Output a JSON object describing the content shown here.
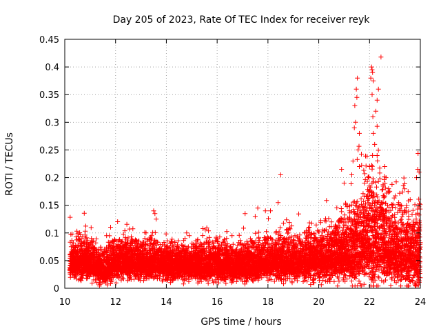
{
  "chart_data": {
    "type": "scatter",
    "title": "Day 205 of 2023, Rate Of TEC Index for receiver reyk",
    "xlabel": "GPS time / hours",
    "ylabel": "ROTI / TECUs",
    "xlim": [
      10,
      24
    ],
    "ylim": [
      0,
      0.45
    ],
    "x_ticks": [
      10,
      12,
      14,
      16,
      18,
      20,
      22,
      24
    ],
    "x_tick_labels": [
      "10",
      "12",
      "14",
      "16",
      "18",
      "20",
      "22",
      "24"
    ],
    "y_ticks": [
      0,
      0.05,
      0.1,
      0.15,
      0.2,
      0.25,
      0.3,
      0.35,
      0.4,
      0.45
    ],
    "y_tick_labels": [
      "0",
      "0.05",
      "0.1",
      "0.15",
      "0.2",
      "0.25",
      "0.3",
      "0.35",
      "0.4",
      "0.45"
    ],
    "grid": true,
    "marker": "+",
    "color": "#ff0000",
    "envelope_hours": [
      10.2,
      11.0,
      11.5,
      12.0,
      13.0,
      14.0,
      15.0,
      16.0,
      17.0,
      18.0,
      19.0,
      20.0,
      20.5,
      21.0,
      21.5,
      22.0,
      22.5,
      23.0,
      23.5,
      24.0
    ],
    "envelope_typical": [
      0.045,
      0.045,
      0.03,
      0.045,
      0.045,
      0.04,
      0.04,
      0.04,
      0.04,
      0.045,
      0.045,
      0.05,
      0.055,
      0.06,
      0.07,
      0.09,
      0.08,
      0.06,
      0.06,
      0.06
    ],
    "envelope_spread": [
      0.02,
      0.02,
      0.018,
      0.02,
      0.02,
      0.018,
      0.018,
      0.02,
      0.02,
      0.022,
      0.024,
      0.025,
      0.03,
      0.035,
      0.045,
      0.06,
      0.055,
      0.04,
      0.04,
      0.045
    ],
    "points": [
      [
        10.9,
        0.08
      ],
      [
        11.05,
        0.09
      ],
      [
        12.1,
        0.085
      ],
      [
        13.5,
        0.14
      ],
      [
        13.55,
        0.135
      ],
      [
        13.6,
        0.125
      ],
      [
        13.2,
        0.1
      ],
      [
        14.8,
        0.1
      ],
      [
        14.9,
        0.095
      ],
      [
        15.2,
        0.08
      ],
      [
        16.3,
        0.085
      ],
      [
        17.1,
        0.135
      ],
      [
        17.5,
        0.13
      ],
      [
        17.6,
        0.145
      ],
      [
        17.9,
        0.14
      ],
      [
        18.1,
        0.14
      ],
      [
        18.4,
        0.155
      ],
      [
        18.5,
        0.205
      ],
      [
        20.9,
        0.215
      ],
      [
        20.5,
        0.12
      ],
      [
        21.0,
        0.19
      ],
      [
        21.3,
        0.205
      ],
      [
        21.35,
        0.23
      ],
      [
        21.4,
        0.29
      ],
      [
        21.45,
        0.3
      ],
      [
        21.42,
        0.33
      ],
      [
        21.5,
        0.345
      ],
      [
        21.48,
        0.36
      ],
      [
        21.52,
        0.38
      ],
      [
        21.6,
        0.28
      ],
      [
        21.55,
        0.25
      ],
      [
        21.6,
        0.22
      ],
      [
        21.8,
        0.19
      ],
      [
        22.0,
        0.22
      ],
      [
        22.05,
        0.38
      ],
      [
        22.08,
        0.4
      ],
      [
        22.1,
        0.395
      ],
      [
        22.12,
        0.39
      ],
      [
        22.15,
        0.375
      ],
      [
        22.1,
        0.35
      ],
      [
        22.13,
        0.31
      ],
      [
        22.15,
        0.28
      ],
      [
        22.2,
        0.26
      ],
      [
        22.25,
        0.32
      ],
      [
        22.3,
        0.34
      ],
      [
        22.35,
        0.36
      ],
      [
        22.3,
        0.24
      ],
      [
        22.45,
        0.418
      ],
      [
        22.6,
        0.22
      ],
      [
        22.65,
        0.2
      ],
      [
        22.75,
        0.18
      ],
      [
        23.2,
        0.14
      ],
      [
        23.6,
        0.16
      ],
      [
        23.85,
        0.2
      ],
      [
        23.9,
        0.215
      ],
      [
        23.95,
        0.21
      ]
    ],
    "points_count": 9000
  }
}
